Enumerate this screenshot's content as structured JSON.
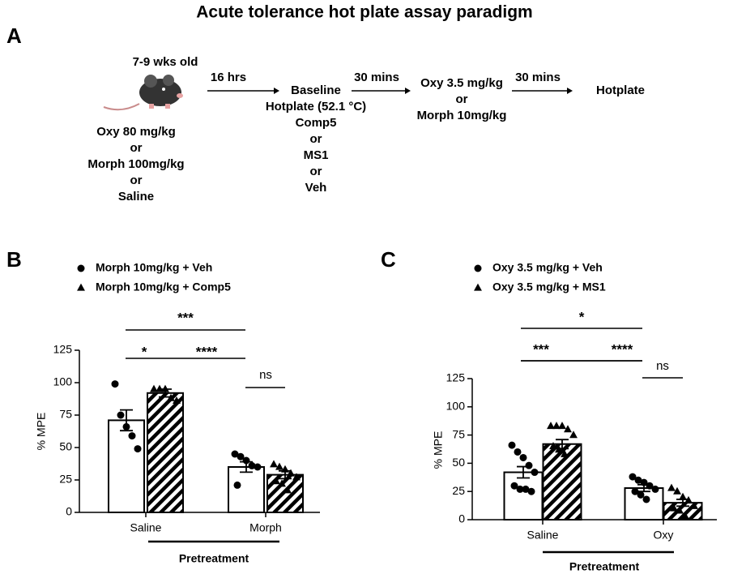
{
  "title": "Acute  tolerance hot plate assay paradigm",
  "panel_a": {
    "letter": "A",
    "mouse_age": "7-9 wks old",
    "pretreatment": [
      "Oxy 80 mg/kg",
      "or",
      "Morph 100mg/kg",
      "or",
      "Saline"
    ],
    "arrows": [
      "16 hrs",
      "30 mins",
      "30 mins"
    ],
    "baseline": [
      "Baseline",
      "Hotplate (52.1 °C)",
      "Comp5",
      "or",
      "MS1",
      "or",
      "Veh"
    ],
    "challenge": [
      "Oxy 3.5 mg/kg",
      "or",
      "Morph 10mg/kg"
    ],
    "final_step": "Hotplate"
  },
  "chart_data": [
    {
      "type": "bar",
      "panel": "B",
      "y_label": "% MPE",
      "x_label": "Pretreatment",
      "categories": [
        "Saline",
        "Morph"
      ],
      "ylim": [
        0,
        125
      ],
      "yticks": [
        0,
        25,
        50,
        75,
        100,
        125
      ],
      "series": [
        {
          "name": "Morph 10mg/kg + Veh",
          "marker": "circle",
          "color": "#ffffff",
          "values": [
            71,
            35
          ],
          "errors": [
            8,
            4
          ],
          "points": [
            [
              99,
              75,
              66,
              59,
              49
            ],
            [
              45,
              43,
              40,
              36,
              35,
              21
            ]
          ]
        },
        {
          "name": "Morph 10mg/kg + Comp5",
          "marker": "triangle",
          "color": "hatch",
          "values": [
            92,
            29
          ],
          "errors": [
            3,
            3
          ],
          "points": [
            [
              95,
              95,
              95,
              88,
              86
            ],
            [
              37,
              35,
              33,
              30,
              27,
              24,
              22,
              17
            ]
          ]
        }
      ],
      "annotations": [
        "***",
        "*",
        "****",
        "ns"
      ]
    },
    {
      "type": "bar",
      "panel": "C",
      "y_label": "% MPE",
      "x_label": "Pretreatment",
      "categories": [
        "Saline",
        "Oxy"
      ],
      "ylim": [
        0,
        125
      ],
      "yticks": [
        0,
        25,
        50,
        75,
        100,
        125
      ],
      "series": [
        {
          "name": "Oxy 3.5 mg/kg + Veh",
          "marker": "circle",
          "color": "#ffffff",
          "values": [
            42,
            28
          ],
          "errors": [
            5,
            3
          ],
          "points": [
            [
              66,
              60,
              55,
              48,
              42,
              30,
              27,
              27,
              25
            ],
            [
              38,
              35,
              33,
              30,
              27,
              25,
              22,
              18
            ]
          ]
        },
        {
          "name": "Oxy 3.5 mg/kg +  MS1",
          "marker": "triangle",
          "color": "hatch",
          "values": [
            67,
            15
          ],
          "errors": [
            4,
            3
          ],
          "points": [
            [
              83,
              83,
              83,
              80,
              75,
              65,
              62,
              58
            ],
            [
              28,
              25,
              20,
              17,
              12,
              10,
              8,
              3
            ]
          ]
        }
      ],
      "annotations": [
        "*",
        "***",
        "****",
        "ns"
      ]
    }
  ]
}
